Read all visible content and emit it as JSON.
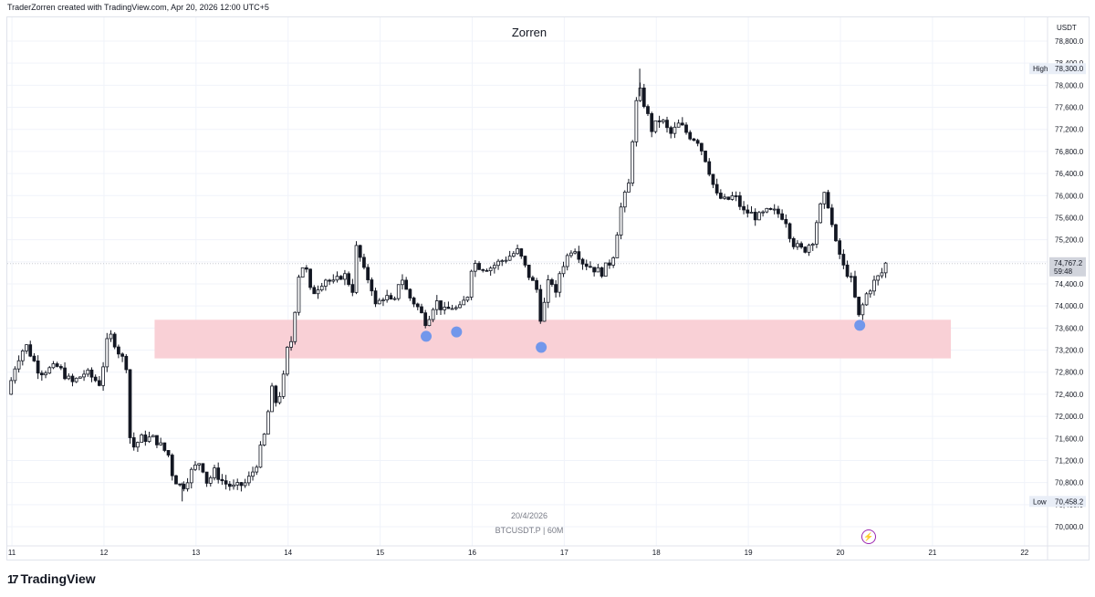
{
  "header": {
    "credit": "TraderZorren created with TradingView.com, Apr 20, 2026 12:00 UTC+5"
  },
  "chart_title": "Zorren",
  "watermark": {
    "date": "20/4/2026",
    "symbol": "BTCUSDT.P | 60M"
  },
  "footer": {
    "logo_text": "TradingView",
    "logo_mark": "17"
  },
  "colors": {
    "zone_fill": "#f9d0d6",
    "marker": "#5b8def",
    "bull": "#ffffff",
    "bear": "#131722",
    "wick": "#131722",
    "grid": "#f0f3fa",
    "price_line": "#c8cbd2",
    "bolt": "#9c27b0"
  },
  "chart_data": {
    "type": "candlestick",
    "title": "Zorren",
    "symbol": "BTCUSDT.P",
    "timeframe": "60M",
    "currency": "USDT",
    "x_ticks": [
      "11",
      "12",
      "13",
      "14",
      "15",
      "16",
      "17",
      "18",
      "19",
      "20",
      "21",
      "22"
    ],
    "x_range_days": [
      11,
      22.5
    ],
    "y_ticks": [
      70000,
      70400,
      70800,
      71200,
      71600,
      72000,
      72400,
      72800,
      73200,
      73600,
      74000,
      74400,
      74800,
      75200,
      75600,
      76000,
      76400,
      76800,
      77200,
      77600,
      78000,
      78400,
      78800
    ],
    "y_tick_labels": [
      "70,000.0",
      "70,400.0",
      "70,800.0",
      "71,200.0",
      "71,600.0",
      "72,000.0",
      "72,400.0",
      "72,800.0",
      "73,200.0",
      "73,600.0",
      "74,000.0",
      "74,400.0",
      "74,800.0",
      "75,200.0",
      "75,600.0",
      "76,000.0",
      "76,400.0",
      "76,800.0",
      "77,200.0",
      "77,600.0",
      "78,000.0",
      "78,400.0",
      "78,800.0"
    ],
    "ylim": [
      69800,
      79200
    ],
    "current_price": {
      "label": "74,767.2",
      "value": 74767.2,
      "countdown": "59:48"
    },
    "high": {
      "label": "High",
      "value": 78300,
      "value_label": "78,300.0"
    },
    "low": {
      "label": "Low",
      "value": 70458.2,
      "value_label": "70,458.2"
    },
    "zone": {
      "from_day": 12.55,
      "to_day": 21.2,
      "low": 73050,
      "high": 73750
    },
    "markers": [
      {
        "day": 15.5,
        "price": 73450
      },
      {
        "day": 15.83,
        "price": 73530
      },
      {
        "day": 16.75,
        "price": 73250
      },
      {
        "day": 20.21,
        "price": 73650
      }
    ],
    "path": [
      [
        10.95,
        72400
      ],
      [
        11.05,
        73000
      ],
      [
        11.15,
        73300
      ],
      [
        11.3,
        72800
      ],
      [
        11.5,
        72900
      ],
      [
        11.65,
        72600
      ],
      [
        11.8,
        72800
      ],
      [
        11.95,
        72600
      ],
      [
        12.0,
        73000
      ],
      [
        12.05,
        73500
      ],
      [
        12.1,
        73400
      ],
      [
        12.15,
        73200
      ],
      [
        12.25,
        72900
      ],
      [
        12.27,
        71800
      ],
      [
        12.3,
        71400
      ],
      [
        12.4,
        71600
      ],
      [
        12.55,
        71600
      ],
      [
        12.7,
        71300
      ],
      [
        12.75,
        70900
      ],
      [
        12.85,
        70700
      ],
      [
        12.95,
        71000
      ],
      [
        13.05,
        71200
      ],
      [
        13.12,
        70800
      ],
      [
        13.2,
        71000
      ],
      [
        13.3,
        70800
      ],
      [
        13.42,
        70700
      ],
      [
        13.55,
        70800
      ],
      [
        13.65,
        71100
      ],
      [
        13.75,
        71700
      ],
      [
        13.82,
        72500
      ],
      [
        13.88,
        72200
      ],
      [
        13.95,
        72700
      ],
      [
        14.0,
        73300
      ],
      [
        14.05,
        73400
      ],
      [
        14.1,
        74500
      ],
      [
        14.18,
        74800
      ],
      [
        14.25,
        74200
      ],
      [
        14.4,
        74500
      ],
      [
        14.5,
        74400
      ],
      [
        14.6,
        74600
      ],
      [
        14.7,
        74300
      ],
      [
        14.75,
        75200
      ],
      [
        14.8,
        74700
      ],
      [
        14.9,
        74400
      ],
      [
        14.95,
        74000
      ],
      [
        15.05,
        74200
      ],
      [
        15.15,
        74000
      ],
      [
        15.22,
        74600
      ],
      [
        15.3,
        74200
      ],
      [
        15.4,
        74000
      ],
      [
        15.5,
        73700
      ],
      [
        15.6,
        74100
      ],
      [
        15.7,
        73900
      ],
      [
        15.8,
        74000
      ],
      [
        15.85,
        73900
      ],
      [
        15.95,
        74200
      ],
      [
        16.0,
        74800
      ],
      [
        16.1,
        74700
      ],
      [
        16.2,
        74700
      ],
      [
        16.3,
        74800
      ],
      [
        16.4,
        74900
      ],
      [
        16.5,
        75000
      ],
      [
        16.6,
        74600
      ],
      [
        16.7,
        74300
      ],
      [
        16.75,
        73700
      ],
      [
        16.8,
        74200
      ],
      [
        16.85,
        74600
      ],
      [
        16.9,
        74100
      ],
      [
        16.95,
        74600
      ],
      [
        17.0,
        74800
      ],
      [
        17.1,
        75100
      ],
      [
        17.2,
        74800
      ],
      [
        17.3,
        74700
      ],
      [
        17.4,
        74600
      ],
      [
        17.5,
        74800
      ],
      [
        17.55,
        75000
      ],
      [
        17.6,
        75700
      ],
      [
        17.7,
        76200
      ],
      [
        17.77,
        77600
      ],
      [
        17.82,
        77900
      ],
      [
        17.88,
        77600
      ],
      [
        17.95,
        77200
      ],
      [
        18.05,
        77400
      ],
      [
        18.15,
        77100
      ],
      [
        18.25,
        77300
      ],
      [
        18.35,
        77100
      ],
      [
        18.45,
        77000
      ],
      [
        18.55,
        76600
      ],
      [
        18.65,
        76000
      ],
      [
        18.75,
        75900
      ],
      [
        18.85,
        76000
      ],
      [
        18.95,
        75700
      ],
      [
        19.0,
        75700
      ],
      [
        19.1,
        75600
      ],
      [
        19.2,
        75700
      ],
      [
        19.3,
        75700
      ],
      [
        19.4,
        75600
      ],
      [
        19.45,
        75300
      ],
      [
        19.5,
        75100
      ],
      [
        19.6,
        75000
      ],
      [
        19.7,
        75200
      ],
      [
        19.75,
        75600
      ],
      [
        19.82,
        76000
      ],
      [
        19.88,
        75800
      ],
      [
        19.93,
        75200
      ],
      [
        20.0,
        74900
      ],
      [
        20.05,
        74600
      ],
      [
        20.1,
        74600
      ],
      [
        20.15,
        74200
      ],
      [
        20.2,
        73800
      ],
      [
        20.28,
        74200
      ],
      [
        20.35,
        74400
      ],
      [
        20.45,
        74600
      ],
      [
        20.5,
        74800
      ]
    ]
  }
}
